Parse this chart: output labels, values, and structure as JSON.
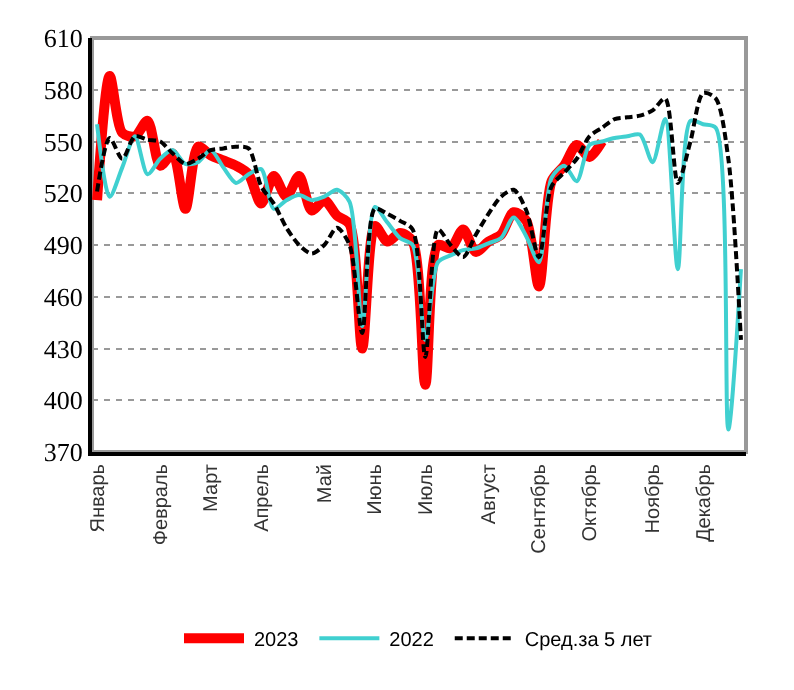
{
  "chart_data": {
    "type": "line",
    "categories": [
      "Январь",
      null,
      null,
      null,
      null,
      "Февраль",
      null,
      null,
      null,
      "Март",
      null,
      null,
      null,
      "Апрель",
      null,
      null,
      null,
      null,
      "Май",
      null,
      null,
      null,
      "Июнь",
      null,
      null,
      null,
      "Июль",
      null,
      null,
      null,
      null,
      "Август",
      null,
      null,
      null,
      "Сентябрь",
      null,
      null,
      null,
      "Октябрь",
      null,
      null,
      null,
      null,
      "Ноябрь",
      null,
      null,
      null,
      "Декабрь",
      null,
      null,
      null
    ],
    "ylim": [
      370,
      610
    ],
    "yticks": [
      370,
      400,
      430,
      460,
      490,
      520,
      550,
      580,
      610
    ],
    "grid": "y",
    "legend": "bottom",
    "series": [
      {
        "name": "2023",
        "color": "#ff0000",
        "line_style": "solid",
        "values": [
          516,
          588,
          555,
          553,
          562,
          536,
          543,
          511,
          547,
          542,
          539,
          536,
          531,
          514,
          530,
          518,
          530,
          510,
          516,
          507,
          502,
          430,
          501,
          492,
          497,
          492,
          409,
          490,
          488,
          499,
          486,
          492,
          496,
          509,
          504,
          466,
          527,
          536,
          548,
          541,
          550,
          null,
          null,
          null,
          null,
          null,
          null,
          null,
          null,
          null,
          null,
          null
        ]
      },
      {
        "name": "2022",
        "color": "#40d0d0",
        "line_style": "solid",
        "values": [
          560,
          518,
          535,
          553,
          531,
          540,
          545,
          537,
          538,
          545,
          535,
          526,
          531,
          534,
          511,
          516,
          519,
          516,
          518,
          522,
          515,
          443,
          512,
          503,
          494,
          490,
          435,
          480,
          484,
          487,
          488,
          491,
          494,
          506,
          495,
          480,
          529,
          536,
          527,
          548,
          550,
          552,
          553,
          554,
          538,
          563,
          476,
          562,
          560,
          558,
          383,
          476
        ]
      },
      {
        "name": "Сред.за 5 лет",
        "color": "#000000",
        "line_style": "dashed",
        "values": [
          521,
          552,
          540,
          553,
          551,
          550,
          543,
          537,
          540,
          545,
          546,
          547,
          546,
          524,
          514,
          500,
          490,
          485,
          490,
          500,
          490,
          439,
          511,
          508,
          504,
          499,
          425,
          499,
          490,
          483,
          496,
          508,
          518,
          522,
          510,
          483,
          524,
          532,
          540,
          553,
          558,
          563,
          564,
          565,
          568,
          575,
          526,
          550,
          578,
          575,
          540,
          435
        ]
      }
    ]
  }
}
